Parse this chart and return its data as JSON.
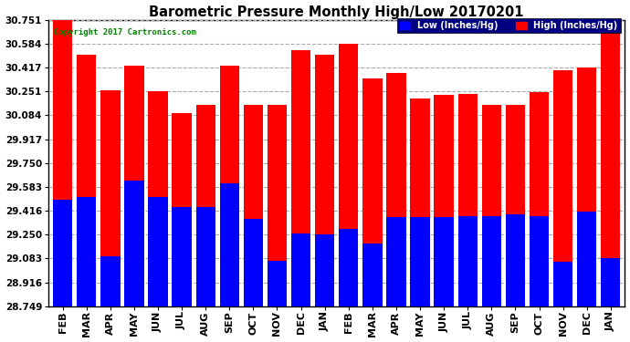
{
  "title": "Barometric Pressure Monthly High/Low 20170201",
  "copyright_text": "Copyright 2017 Cartronics.com",
  "legend_low": "Low (Inches/Hg)",
  "legend_high": "High (Inches/Hg)",
  "categories": [
    "FEB",
    "MAR",
    "APR",
    "MAY",
    "JUN",
    "JUL",
    "AUG",
    "SEP",
    "OCT",
    "NOV",
    "DEC",
    "JAN",
    "FEB",
    "MAR",
    "APR",
    "MAY",
    "JUN",
    "JUL",
    "AUG",
    "SEP",
    "OCT",
    "NOV",
    "DEC",
    "JAN"
  ],
  "high_values": [
    30.751,
    30.51,
    30.26,
    30.43,
    30.255,
    30.1,
    30.155,
    30.43,
    30.155,
    30.155,
    30.54,
    30.51,
    30.584,
    30.34,
    30.38,
    30.2,
    30.225,
    30.23,
    30.155,
    30.155,
    30.245,
    30.4,
    30.415,
    30.751
  ],
  "low_values": [
    29.495,
    29.51,
    29.095,
    29.625,
    29.51,
    29.44,
    29.44,
    29.61,
    29.36,
    29.065,
    29.26,
    29.25,
    29.29,
    29.185,
    29.37,
    29.37,
    29.375,
    29.38,
    29.38,
    29.39,
    29.38,
    29.06,
    29.41,
    29.085
  ],
  "y_min": 28.749,
  "y_max": 30.751,
  "yticks": [
    28.749,
    28.916,
    29.083,
    29.25,
    29.416,
    29.583,
    29.75,
    29.917,
    30.084,
    30.251,
    30.417,
    30.584,
    30.751
  ],
  "high_color": "#ff0000",
  "low_color": "#0000ff",
  "bg_color": "#ffffff",
  "plot_bg_color": "#ffffff",
  "grid_color": "#aaaaaa",
  "title_color": "#000000",
  "copyright_color": "#008000",
  "bar_width": 0.82
}
